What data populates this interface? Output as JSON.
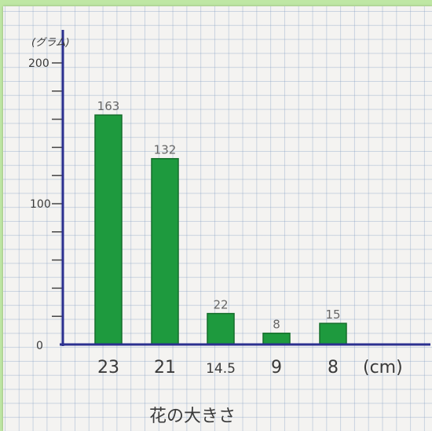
{
  "chart_data": {
    "type": "bar",
    "categories": [
      "23",
      "21",
      "14.5",
      "9",
      "8"
    ],
    "values": [
      163,
      132,
      22,
      8,
      15
    ],
    "ylabel": "(グラム)",
    "xlabel": "花の大きさ",
    "x_unit": "(cm)",
    "ylim": [
      0,
      200
    ],
    "yticks": [
      0,
      100,
      200
    ],
    "bar_color": "#1e9a3e",
    "axis_color": "#2b2f8f",
    "grid": true
  }
}
